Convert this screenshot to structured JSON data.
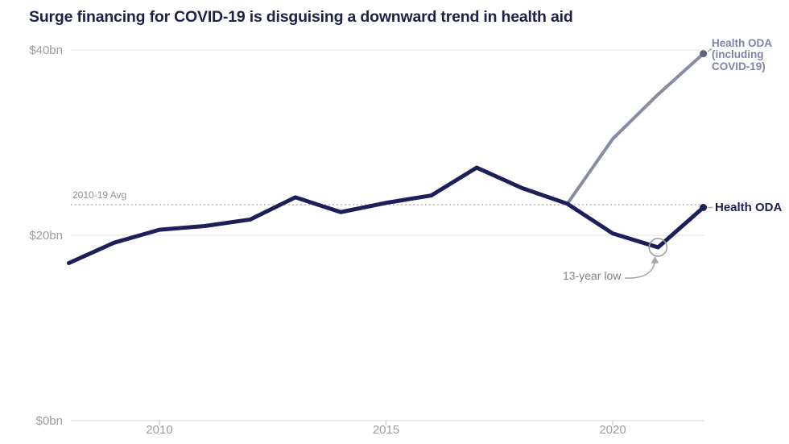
{
  "title": "Surge financing for COVID-19 is disguising a downward trend in health aid",
  "chart_data": {
    "type": "line",
    "x": [
      2008,
      2009,
      2010,
      2011,
      2012,
      2013,
      2014,
      2015,
      2016,
      2017,
      2018,
      2019,
      2020,
      2021,
      2022
    ],
    "series": [
      {
        "name": "Health ODA (including COVID-19)",
        "color": "#868ba6",
        "dot_color": "#5d6388",
        "x": [
          2019,
          2020,
          2021,
          2022
        ],
        "values": [
          23.4,
          30.4,
          35.2,
          39.6
        ]
      },
      {
        "name": "Health ODA",
        "color": "#1b2058",
        "dot_color": "#1b2058",
        "x": [
          2008,
          2009,
          2010,
          2011,
          2012,
          2013,
          2014,
          2015,
          2016,
          2017,
          2018,
          2019,
          2020,
          2021,
          2022
        ],
        "values": [
          17.0,
          19.2,
          20.6,
          21.0,
          21.7,
          24.1,
          22.5,
          23.5,
          24.3,
          27.3,
          25.1,
          23.4,
          20.2,
          18.7,
          23.0
        ]
      }
    ],
    "avg_line": {
      "label": "2010-19 Avg",
      "value": 23.3
    },
    "annotations": {
      "low": {
        "label": "13-year low",
        "year": 2021,
        "value": 18.7
      }
    },
    "y_ticks": [
      {
        "label": "$0bn",
        "value": 0
      },
      {
        "label": "$20bn",
        "value": 20
      },
      {
        "label": "$40bn",
        "value": 40
      }
    ],
    "x_ticks": [
      {
        "label": "2010",
        "value": 2010
      },
      {
        "label": "2015",
        "value": 2015
      },
      {
        "label": "2020",
        "value": 2020
      }
    ],
    "ylim": [
      0,
      42
    ],
    "xlim": [
      2008,
      2022
    ],
    "legend_position": "right-of-line-ends",
    "grid": "horizontal-only",
    "colors": {
      "grid": "#ececec",
      "axis": "#e2e2e2",
      "tick": "#d2d2d2",
      "dotted_avg": "#bcbcbc",
      "annotation": "#a9a9a9",
      "axis_text": "#9a9da1"
    }
  }
}
